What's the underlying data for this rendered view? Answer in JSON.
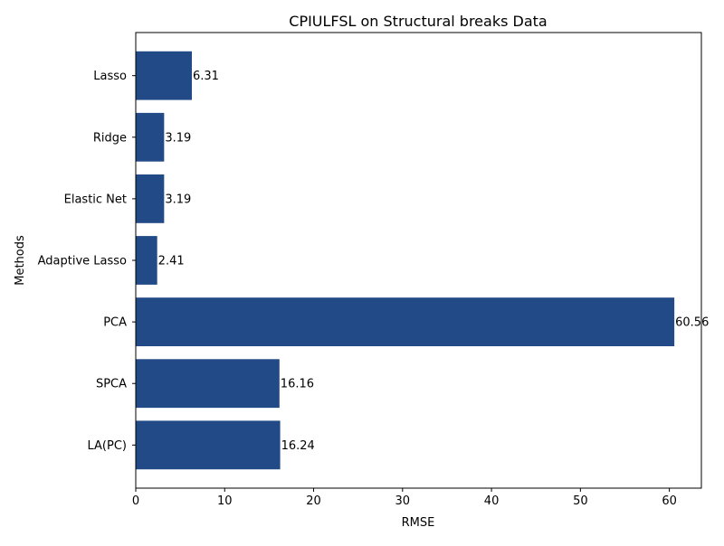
{
  "chart_data": {
    "type": "bar",
    "orientation": "horizontal",
    "title": "CPIULFSL on Structural breaks Data",
    "xlabel": "RMSE",
    "ylabel": "Methods",
    "categories": [
      "Lasso",
      "Ridge",
      "Elastic Net",
      "Adaptive Lasso",
      "PCA",
      "SPCA",
      "LA(PC)"
    ],
    "values": [
      6.31,
      3.19,
      3.19,
      2.41,
      60.56,
      16.16,
      16.24
    ],
    "data_labels": [
      "6.31",
      "3.19",
      "3.19",
      "2.41",
      "60.56",
      "16.16",
      "16.24"
    ],
    "xlim": [
      0,
      63.6
    ],
    "xticks": [
      0,
      10,
      20,
      30,
      40,
      50,
      60
    ],
    "xtick_labels": [
      "0",
      "10",
      "20",
      "30",
      "40",
      "50",
      "60"
    ],
    "grid": false,
    "bar_color": "#214a87"
  }
}
